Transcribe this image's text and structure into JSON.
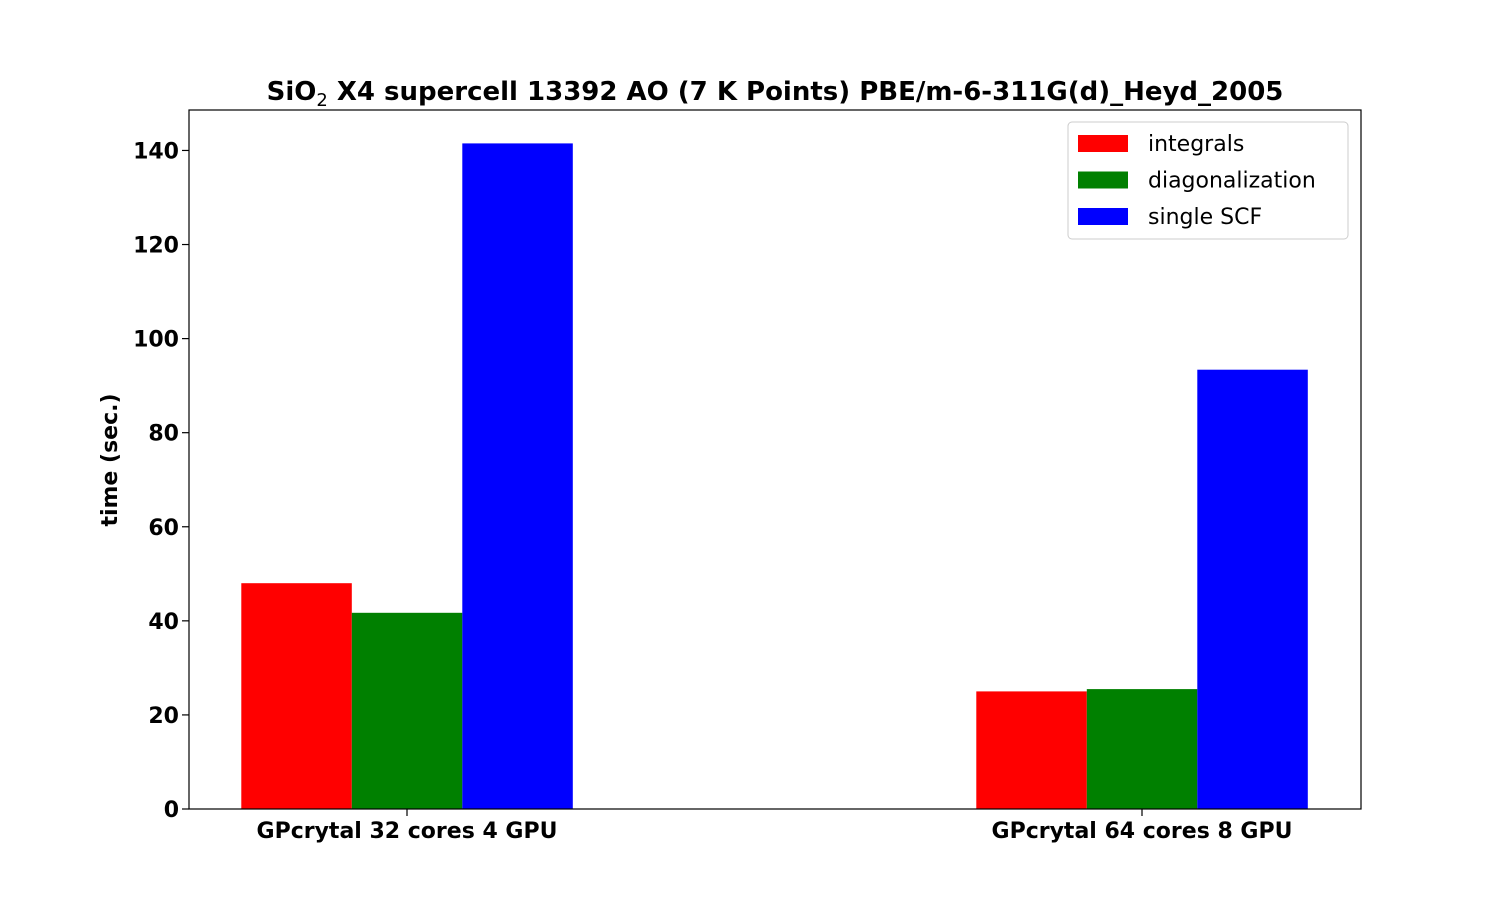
{
  "chart_data": {
    "type": "bar",
    "title_parts": {
      "pre": "SiO",
      "sub": "2",
      "post": " X4 supercell 13392 AO (7 K Points) PBE/m-6-311G(d)_Heyd_2005"
    },
    "xlabel": "",
    "ylabel": "time (sec.)",
    "categories": [
      "GPcrytal 32 cores 4 GPU",
      "GPcrytal 64 cores 8 GPU"
    ],
    "series": [
      {
        "name": "integrals",
        "color": "#ff0000",
        "values": [
          48.0,
          25.0
        ]
      },
      {
        "name": "diagonalization",
        "color": "#008000",
        "values": [
          41.7,
          25.5
        ]
      },
      {
        "name": "single SCF",
        "color": "#0000ff",
        "values": [
          141.5,
          93.4
        ]
      }
    ],
    "ylim": [
      0,
      148.6
    ],
    "yticks": [
      0,
      20,
      40,
      60,
      80,
      100,
      120,
      140
    ],
    "grid": false,
    "legend_position": "top-right"
  }
}
